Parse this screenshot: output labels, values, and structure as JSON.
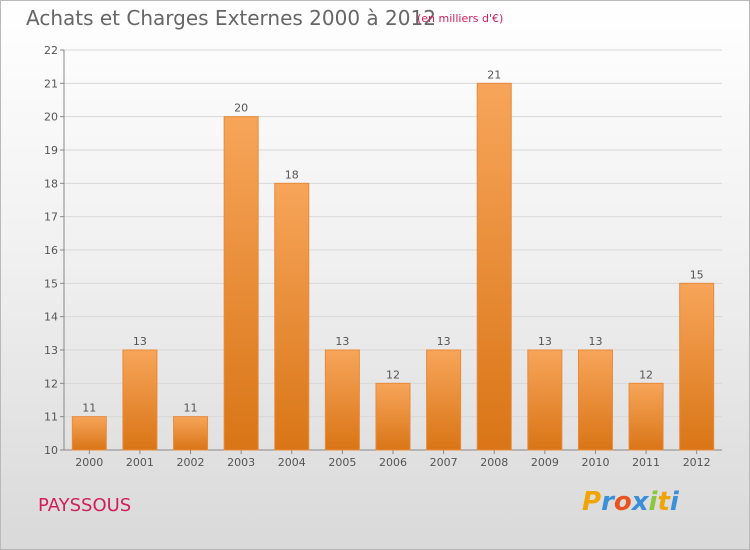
{
  "title": "Achats et Charges Externes 2000 à 2012",
  "unit_label": "(en milliers d'€)",
  "commune": "PAYSSOUS",
  "brand": {
    "letters": [
      "P",
      "r",
      "o",
      "x",
      "i",
      "t",
      "i"
    ],
    "colors": [
      "#f0a500",
      "#3a8fd8",
      "#e8541f",
      "#3a8fd8",
      "#8cc63f",
      "#f0a500",
      "#3a8fd8"
    ]
  },
  "colors": {
    "bar_top": "#f7a55a",
    "bar_bottom": "#d97516",
    "bar_border": "#e88a3a",
    "grid": "#d8d8d8"
  },
  "chart_data": {
    "type": "bar",
    "title": "Achats et Charges Externes 2000 à 2012",
    "xlabel": "",
    "ylabel": "",
    "categories": [
      "2000",
      "2001",
      "2002",
      "2003",
      "2004",
      "2005",
      "2006",
      "2007",
      "2008",
      "2009",
      "2010",
      "2011",
      "2012"
    ],
    "values": [
      11,
      13,
      11,
      20,
      18,
      13,
      12,
      13,
      21,
      13,
      13,
      12,
      15
    ],
    "ylim": [
      10,
      22
    ],
    "yticks": [
      10,
      11,
      12,
      13,
      14,
      15,
      16,
      17,
      18,
      19,
      20,
      21,
      22
    ],
    "grid": true,
    "data_labels": true
  }
}
